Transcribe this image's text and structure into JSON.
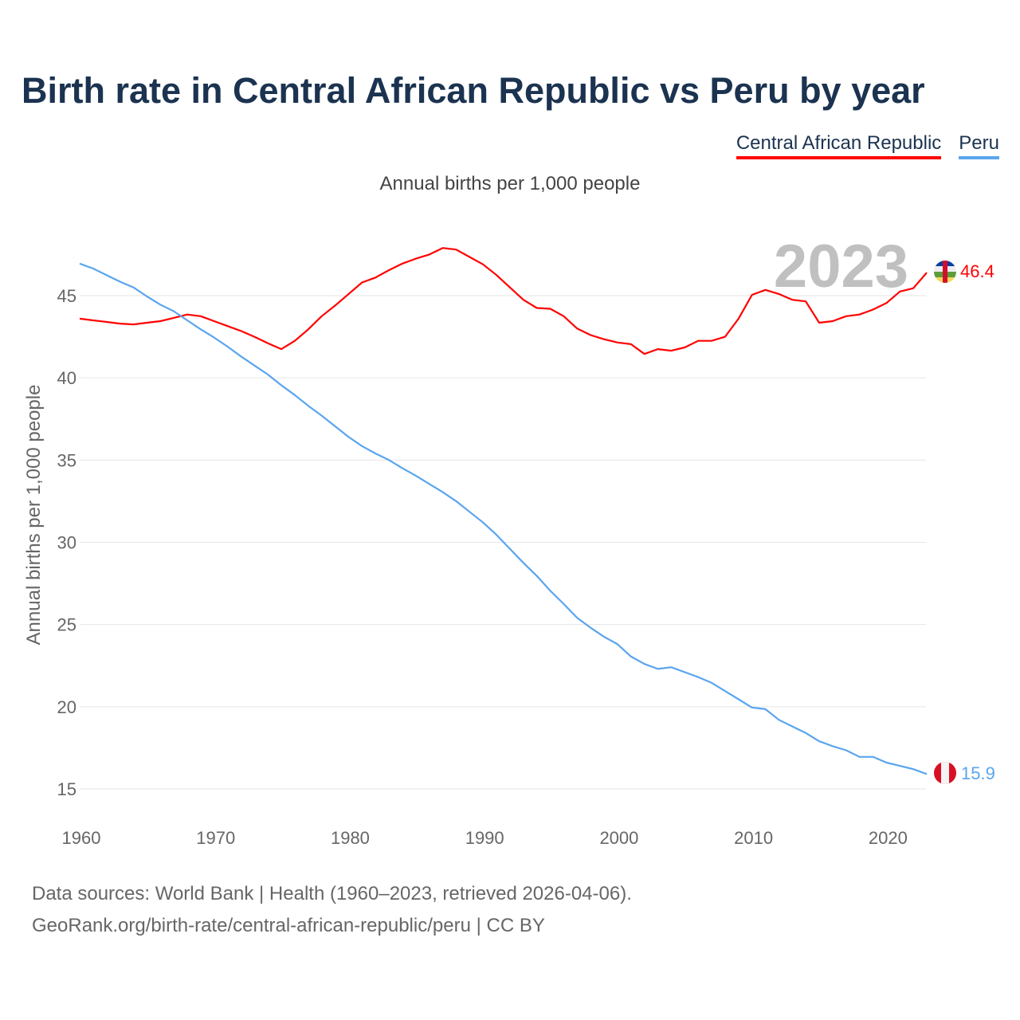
{
  "title": "Birth rate in Central African Republic vs Peru by year",
  "footer": {
    "line1": "Data sources: World Bank | Health (1960–2023, retrieved 2026-04-06).",
    "line2": "GeoRank.org/birth-rate/central-african-republic/peru | CC BY"
  },
  "chart_data": {
    "type": "line",
    "title": "Birth rate in Central African Republic vs Peru by year",
    "subtitle": "Annual births per 1,000 people",
    "xlabel": "",
    "ylabel": "Annual births per 1,000 people",
    "year_watermark": "2023",
    "xlim": [
      1960,
      2023
    ],
    "ylim": [
      13.5,
      48.5
    ],
    "xticks": [
      1960,
      1970,
      1980,
      1990,
      2000,
      2010,
      2020
    ],
    "yticks": [
      15,
      20,
      25,
      30,
      35,
      40,
      45
    ],
    "grid": true,
    "legend_position": "top-right",
    "x": [
      1960,
      1961,
      1962,
      1963,
      1964,
      1965,
      1966,
      1967,
      1968,
      1969,
      1970,
      1971,
      1972,
      1973,
      1974,
      1975,
      1976,
      1977,
      1978,
      1979,
      1980,
      1981,
      1982,
      1983,
      1984,
      1985,
      1986,
      1987,
      1988,
      1989,
      1990,
      1991,
      1992,
      1993,
      1994,
      1995,
      1996,
      1997,
      1998,
      1999,
      2000,
      2001,
      2002,
      2003,
      2004,
      2005,
      2006,
      2007,
      2008,
      2009,
      2010,
      2011,
      2012,
      2013,
      2014,
      2015,
      2016,
      2017,
      2018,
      2019,
      2020,
      2021,
      2022,
      2023
    ],
    "series": [
      {
        "name": "Central African Republic",
        "color": "#ff0000",
        "end_label": "46.4",
        "flag": "central-african-republic-flag",
        "values": [
          43.6,
          43.5,
          43.4,
          43.3,
          43.25,
          43.35,
          43.45,
          43.65,
          43.85,
          43.75,
          43.45,
          43.15,
          42.85,
          42.5,
          42.1,
          41.75,
          42.25,
          42.95,
          43.75,
          44.4,
          45.1,
          45.8,
          46.1,
          46.55,
          46.95,
          47.25,
          47.5,
          47.9,
          47.8,
          47.35,
          46.9,
          46.25,
          45.5,
          44.75,
          44.25,
          44.2,
          43.75,
          43.0,
          42.6,
          42.35,
          42.15,
          42.05,
          41.45,
          41.75,
          41.65,
          41.85,
          42.25,
          42.25,
          42.5,
          43.6,
          45.05,
          45.35,
          45.1,
          44.75,
          44.65,
          43.35,
          43.45,
          43.75,
          43.85,
          44.15,
          44.55,
          45.25,
          45.45,
          46.4
        ]
      },
      {
        "name": "Peru",
        "color": "#5aa5ee",
        "end_label": "15.9",
        "flag": "peru-flag",
        "values": [
          46.95,
          46.65,
          46.25,
          45.85,
          45.5,
          44.95,
          44.45,
          44.05,
          43.5,
          42.95,
          42.45,
          41.9,
          41.3,
          40.75,
          40.2,
          39.55,
          38.95,
          38.3,
          37.7,
          37.05,
          36.4,
          35.85,
          35.4,
          35.0,
          34.5,
          34.05,
          33.55,
          33.05,
          32.5,
          31.85,
          31.2,
          30.45,
          29.6,
          28.75,
          27.95,
          27.05,
          26.25,
          25.4,
          24.8,
          24.25,
          23.8,
          23.05,
          22.6,
          22.3,
          22.4,
          22.1,
          21.8,
          21.45,
          20.95,
          20.45,
          19.95,
          19.85,
          19.2,
          18.8,
          18.4,
          17.9,
          17.6,
          17.35,
          16.95,
          16.95,
          16.6,
          16.4,
          16.2,
          15.9
        ]
      }
    ]
  }
}
